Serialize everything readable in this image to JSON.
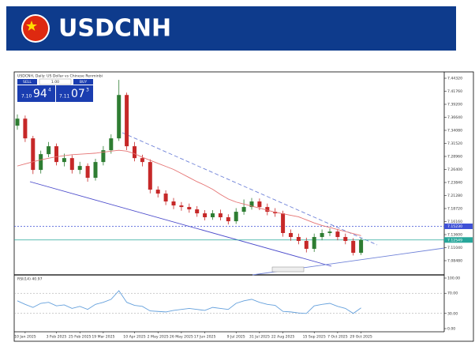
{
  "header": {
    "title": "USDCNH"
  },
  "chart_data": {
    "type": "candlestick",
    "title": "USDCNH, Daily: US Dollar vs Chinese Renminbi",
    "trade_panel": {
      "sell": "SELL",
      "buy": "BUY",
      "lot": "1.00",
      "bid": [
        "7.10",
        "94",
        "4"
      ],
      "ask": [
        "7.11",
        "07",
        "3"
      ]
    },
    "categories": [
      null,
      "10 Jan 2025",
      null,
      null,
      null,
      "3 Feb 2025",
      null,
      null,
      "25 Feb 2025",
      null,
      null,
      "19 Mar 2025",
      null,
      null,
      null,
      "10 Apr 2025",
      null,
      null,
      "2 May 2025",
      null,
      null,
      "26 May 2025",
      null,
      null,
      "17 Jun 2025",
      null,
      null,
      null,
      "9 Jul 2025",
      null,
      null,
      "31 Jul 2025",
      null,
      null,
      "22 Aug 2025",
      null,
      null,
      null,
      "15 Sep 2025",
      null,
      null,
      "7 Oct 2025",
      null,
      null,
      "29 Oct 2025"
    ],
    "open": [
      7.35,
      7.3638,
      7.3251,
      7.2631,
      7.2941,
      7.3096,
      7.2786,
      7.2863,
      7.2631,
      7.2708,
      7.2476,
      7.2786,
      7.3018,
      7.3251,
      7.4103,
      7.3096,
      7.2863,
      7.2786,
      7.2243,
      7.2166,
      7.2011,
      7.1933,
      7.1902,
      7.1856,
      7.1778,
      7.1701,
      7.1778,
      7.1701,
      7.1623,
      7.1809,
      7.1902,
      7.2011,
      7.1902,
      7.1809,
      7.1778,
      7.1391,
      7.1313,
      7.1236,
      7.1081,
      7.1313,
      7.1391,
      7.142,
      7.1313,
      7.1236,
      7.1003
    ],
    "high": [
      7.372,
      7.37,
      7.33,
      7.301,
      7.318,
      7.315,
      7.295,
      7.292,
      7.279,
      7.276,
      7.285,
      7.31,
      7.333,
      7.44,
      7.415,
      7.318,
      7.293,
      7.284,
      7.231,
      7.223,
      7.208,
      7.2,
      7.197,
      7.192,
      7.184,
      7.184,
      7.185,
      7.176,
      7.188,
      7.205,
      7.208,
      7.207,
      7.197,
      7.188,
      7.183,
      7.146,
      7.138,
      7.13,
      7.138,
      7.146,
      7.148,
      7.147,
      7.138,
      7.129,
      7.129
    ],
    "low": [
      7.342,
      7.318,
      7.255,
      7.256,
      7.288,
      7.272,
      7.27,
      7.256,
      7.255,
      7.24,
      7.242,
      7.272,
      7.295,
      7.32,
      7.302,
      7.28,
      7.27,
      7.217,
      7.209,
      7.194,
      7.186,
      7.183,
      7.179,
      7.171,
      7.164,
      7.165,
      7.164,
      7.156,
      7.157,
      7.175,
      7.185,
      7.184,
      7.174,
      7.171,
      7.132,
      7.124,
      7.117,
      7.101,
      7.102,
      7.125,
      7.133,
      7.125,
      7.117,
      7.095,
      7.096
    ],
    "close": [
      7.3638,
      7.3251,
      7.2631,
      7.2941,
      7.3096,
      7.2786,
      7.2863,
      7.2631,
      7.2708,
      7.2476,
      7.2786,
      7.3018,
      7.3251,
      7.4103,
      7.3096,
      7.2863,
      7.2786,
      7.2243,
      7.2166,
      7.2011,
      7.1933,
      7.1902,
      7.1856,
      7.1778,
      7.1701,
      7.1778,
      7.1701,
      7.1623,
      7.1809,
      7.1902,
      7.2011,
      7.1902,
      7.1809,
      7.1778,
      7.1391,
      7.1313,
      7.1236,
      7.1081,
      7.1313,
      7.1391,
      7.142,
      7.1313,
      7.1236,
      7.1003,
      7.12549
    ],
    "up_color": "#2e7d32",
    "down_color": "#c62828",
    "moving_average": {
      "color": "#e57373",
      "values": [
        7.2708,
        7.275,
        7.279,
        7.283,
        7.286,
        7.289,
        7.291,
        7.293,
        7.294,
        7.295,
        7.296,
        7.298,
        7.3,
        7.3018,
        7.3,
        7.295,
        7.288,
        7.282,
        7.276,
        7.27,
        7.264,
        7.256,
        7.248,
        7.24,
        7.233,
        7.225,
        7.215,
        7.206,
        7.2,
        7.196,
        7.192,
        7.188,
        7.184,
        7.18,
        7.177,
        7.174,
        7.171,
        7.165,
        7.159,
        7.154,
        7.15,
        7.146,
        7.142,
        7.138,
        7.134
      ]
    },
    "ylim": [
      7.0584,
      7.4541
    ],
    "yticks": [
      {
        "value": 7.0848,
        "label": "7.08480"
      },
      {
        "value": 7.1104,
        "label": "7.11040"
      },
      {
        "value": 7.136,
        "label": "7.13600"
      },
      {
        "value": 7.1616,
        "label": "7.16160"
      },
      {
        "value": 7.1872,
        "label": "7.18720"
      },
      {
        "value": 7.2128,
        "label": "7.21280"
      },
      {
        "value": 7.2384,
        "label": "7.23840"
      },
      {
        "value": 7.264,
        "label": "7.26400"
      },
      {
        "value": 7.2896,
        "label": "7.28960"
      },
      {
        "value": 7.3152,
        "label": "7.31520"
      },
      {
        "value": 7.3408,
        "label": "7.34080"
      },
      {
        "value": 7.3664,
        "label": "7.36640"
      },
      {
        "value": 7.392,
        "label": "7.39200"
      },
      {
        "value": 7.4176,
        "label": "7.41760"
      },
      {
        "value": 7.4432,
        "label": "7.44320"
      }
    ],
    "price_lines": [
      {
        "value": 7.1523,
        "label": "7.15230",
        "color": "#3f51d6"
      },
      {
        "value": 7.12549,
        "color": "#26a69a"
      }
    ],
    "rsi": {
      "title": "RSI(14) 40.97",
      "color": "#64a0dc",
      "values": [
        55,
        48,
        42,
        50,
        52,
        45,
        47,
        40,
        44,
        38,
        48,
        52,
        58,
        75,
        52,
        46,
        44,
        35,
        34,
        33,
        36,
        38,
        40,
        38,
        36,
        42,
        40,
        38,
        50,
        55,
        58,
        52,
        48,
        46,
        34,
        33,
        31,
        30,
        45,
        48,
        50,
        44,
        40,
        30,
        40.97
      ],
      "ylim": [
        0,
        100
      ],
      "yticks": [
        {
          "value": 100,
          "label": "100.00"
        },
        {
          "value": 70,
          "label": "70.00"
        },
        {
          "value": 30,
          "label": "30.00"
        },
        {
          "value": 0,
          "label": "0.00"
        }
      ],
      "levels": [
        70,
        30
      ]
    }
  }
}
